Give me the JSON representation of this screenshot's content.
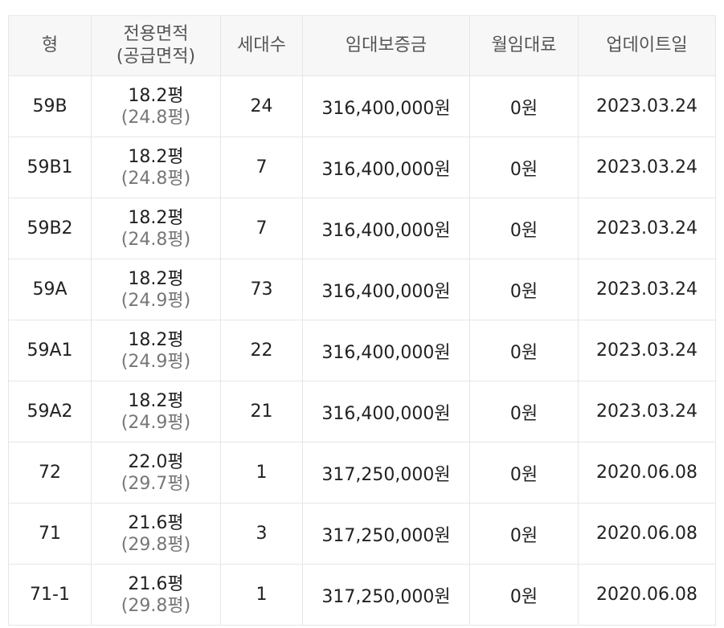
{
  "headers": {
    "type": "형",
    "area_line1": "전용면적",
    "area_line2": "(공급면적)",
    "households": "세대수",
    "deposit": "임대보증금",
    "rent": "월임대료",
    "updated": "업데이트일"
  },
  "rows": [
    {
      "type": "59B",
      "area": "18.2평",
      "supply": "(24.8평)",
      "households": "24",
      "deposit": "316,400,000원",
      "rent": "0원",
      "updated": "2023.03.24"
    },
    {
      "type": "59B1",
      "area": "18.2평",
      "supply": "(24.8평)",
      "households": "7",
      "deposit": "316,400,000원",
      "rent": "0원",
      "updated": "2023.03.24"
    },
    {
      "type": "59B2",
      "area": "18.2평",
      "supply": "(24.8평)",
      "households": "7",
      "deposit": "316,400,000원",
      "rent": "0원",
      "updated": "2023.03.24"
    },
    {
      "type": "59A",
      "area": "18.2평",
      "supply": "(24.9평)",
      "households": "73",
      "deposit": "316,400,000원",
      "rent": "0원",
      "updated": "2023.03.24"
    },
    {
      "type": "59A1",
      "area": "18.2평",
      "supply": "(24.9평)",
      "households": "22",
      "deposit": "316,400,000원",
      "rent": "0원",
      "updated": "2023.03.24"
    },
    {
      "type": "59A2",
      "area": "18.2평",
      "supply": "(24.9평)",
      "households": "21",
      "deposit": "316,400,000원",
      "rent": "0원",
      "updated": "2023.03.24"
    },
    {
      "type": "72",
      "area": "22.0평",
      "supply": "(29.7평)",
      "households": "1",
      "deposit": "317,250,000원",
      "rent": "0원",
      "updated": "2020.06.08"
    },
    {
      "type": "71",
      "area": "21.6평",
      "supply": "(29.8평)",
      "households": "3",
      "deposit": "317,250,000원",
      "rent": "0원",
      "updated": "2020.06.08"
    },
    {
      "type": "71-1",
      "area": "21.6평",
      "supply": "(29.8평)",
      "households": "1",
      "deposit": "317,250,000원",
      "rent": "0원",
      "updated": "2020.06.08"
    }
  ]
}
